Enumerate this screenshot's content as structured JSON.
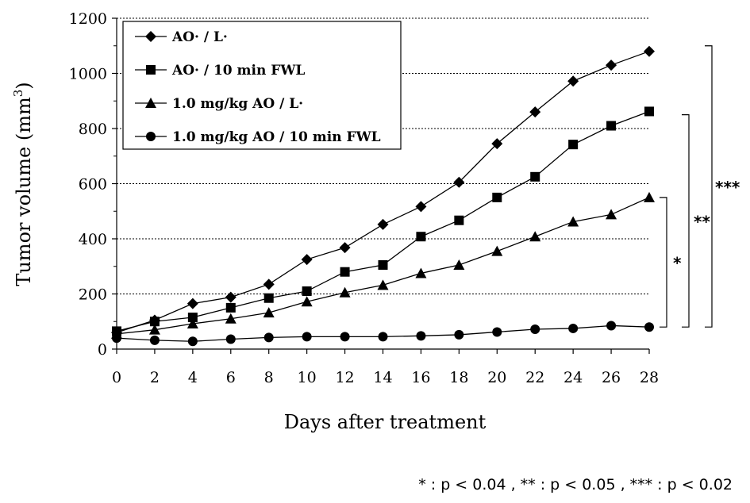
{
  "chart_data": {
    "type": "line",
    "title": "",
    "xlabel": "Days after treatment",
    "ylabel": "Tumor volume (mm",
    "ylabel_superscript": "3",
    "ylabel_suffix": ")",
    "x": [
      0,
      2,
      4,
      6,
      8,
      10,
      12,
      14,
      16,
      18,
      20,
      22,
      24,
      26,
      28
    ],
    "x_tick_labels": [
      "0",
      "2",
      "4",
      "6",
      "8",
      "10",
      "12",
      "14",
      "16",
      "18",
      "20",
      "22",
      "24",
      "26",
      "28"
    ],
    "y_tick_labels": [
      "0",
      "200",
      "400",
      "600",
      "800",
      "1000",
      "1200"
    ],
    "y_ticks": [
      0,
      200,
      400,
      600,
      800,
      1000,
      1200
    ],
    "xlim": [
      0,
      28
    ],
    "ylim": [
      0,
      1200
    ],
    "grid": "horizontal dotted",
    "legend_position": "top-left",
    "series": [
      {
        "name": "AO· / L·",
        "marker": "diamond",
        "values": [
          60,
          105,
          165,
          188,
          235,
          325,
          368,
          452,
          517,
          605,
          745,
          860,
          972,
          1030,
          1080
        ]
      },
      {
        "name": "AO· / 10 min FWL",
        "marker": "square",
        "values": [
          65,
          100,
          115,
          150,
          185,
          210,
          280,
          305,
          408,
          467,
          550,
          625,
          742,
          810,
          862
        ]
      },
      {
        "name": "1.0 mg/kg AO / L·",
        "marker": "triangle",
        "values": [
          55,
          70,
          92,
          110,
          132,
          172,
          205,
          232,
          275,
          305,
          355,
          408,
          462,
          488,
          550
        ]
      },
      {
        "name": "1.0 mg/kg AO / 10 min FWL",
        "marker": "circle",
        "values": [
          40,
          32,
          28,
          36,
          42,
          45,
          45,
          45,
          48,
          52,
          62,
          72,
          75,
          85,
          80
        ]
      }
    ],
    "significance": [
      {
        "label": "*",
        "from_y": 80,
        "to_y": 550
      },
      {
        "label": "**",
        "from_y": 80,
        "to_y": 850
      },
      {
        "label": "***",
        "from_y": 80,
        "to_y": 1100
      }
    ],
    "footnote": "* : p < 0.04 ,  ** : p < 0.05 ,  *** : p < 0.02"
  }
}
